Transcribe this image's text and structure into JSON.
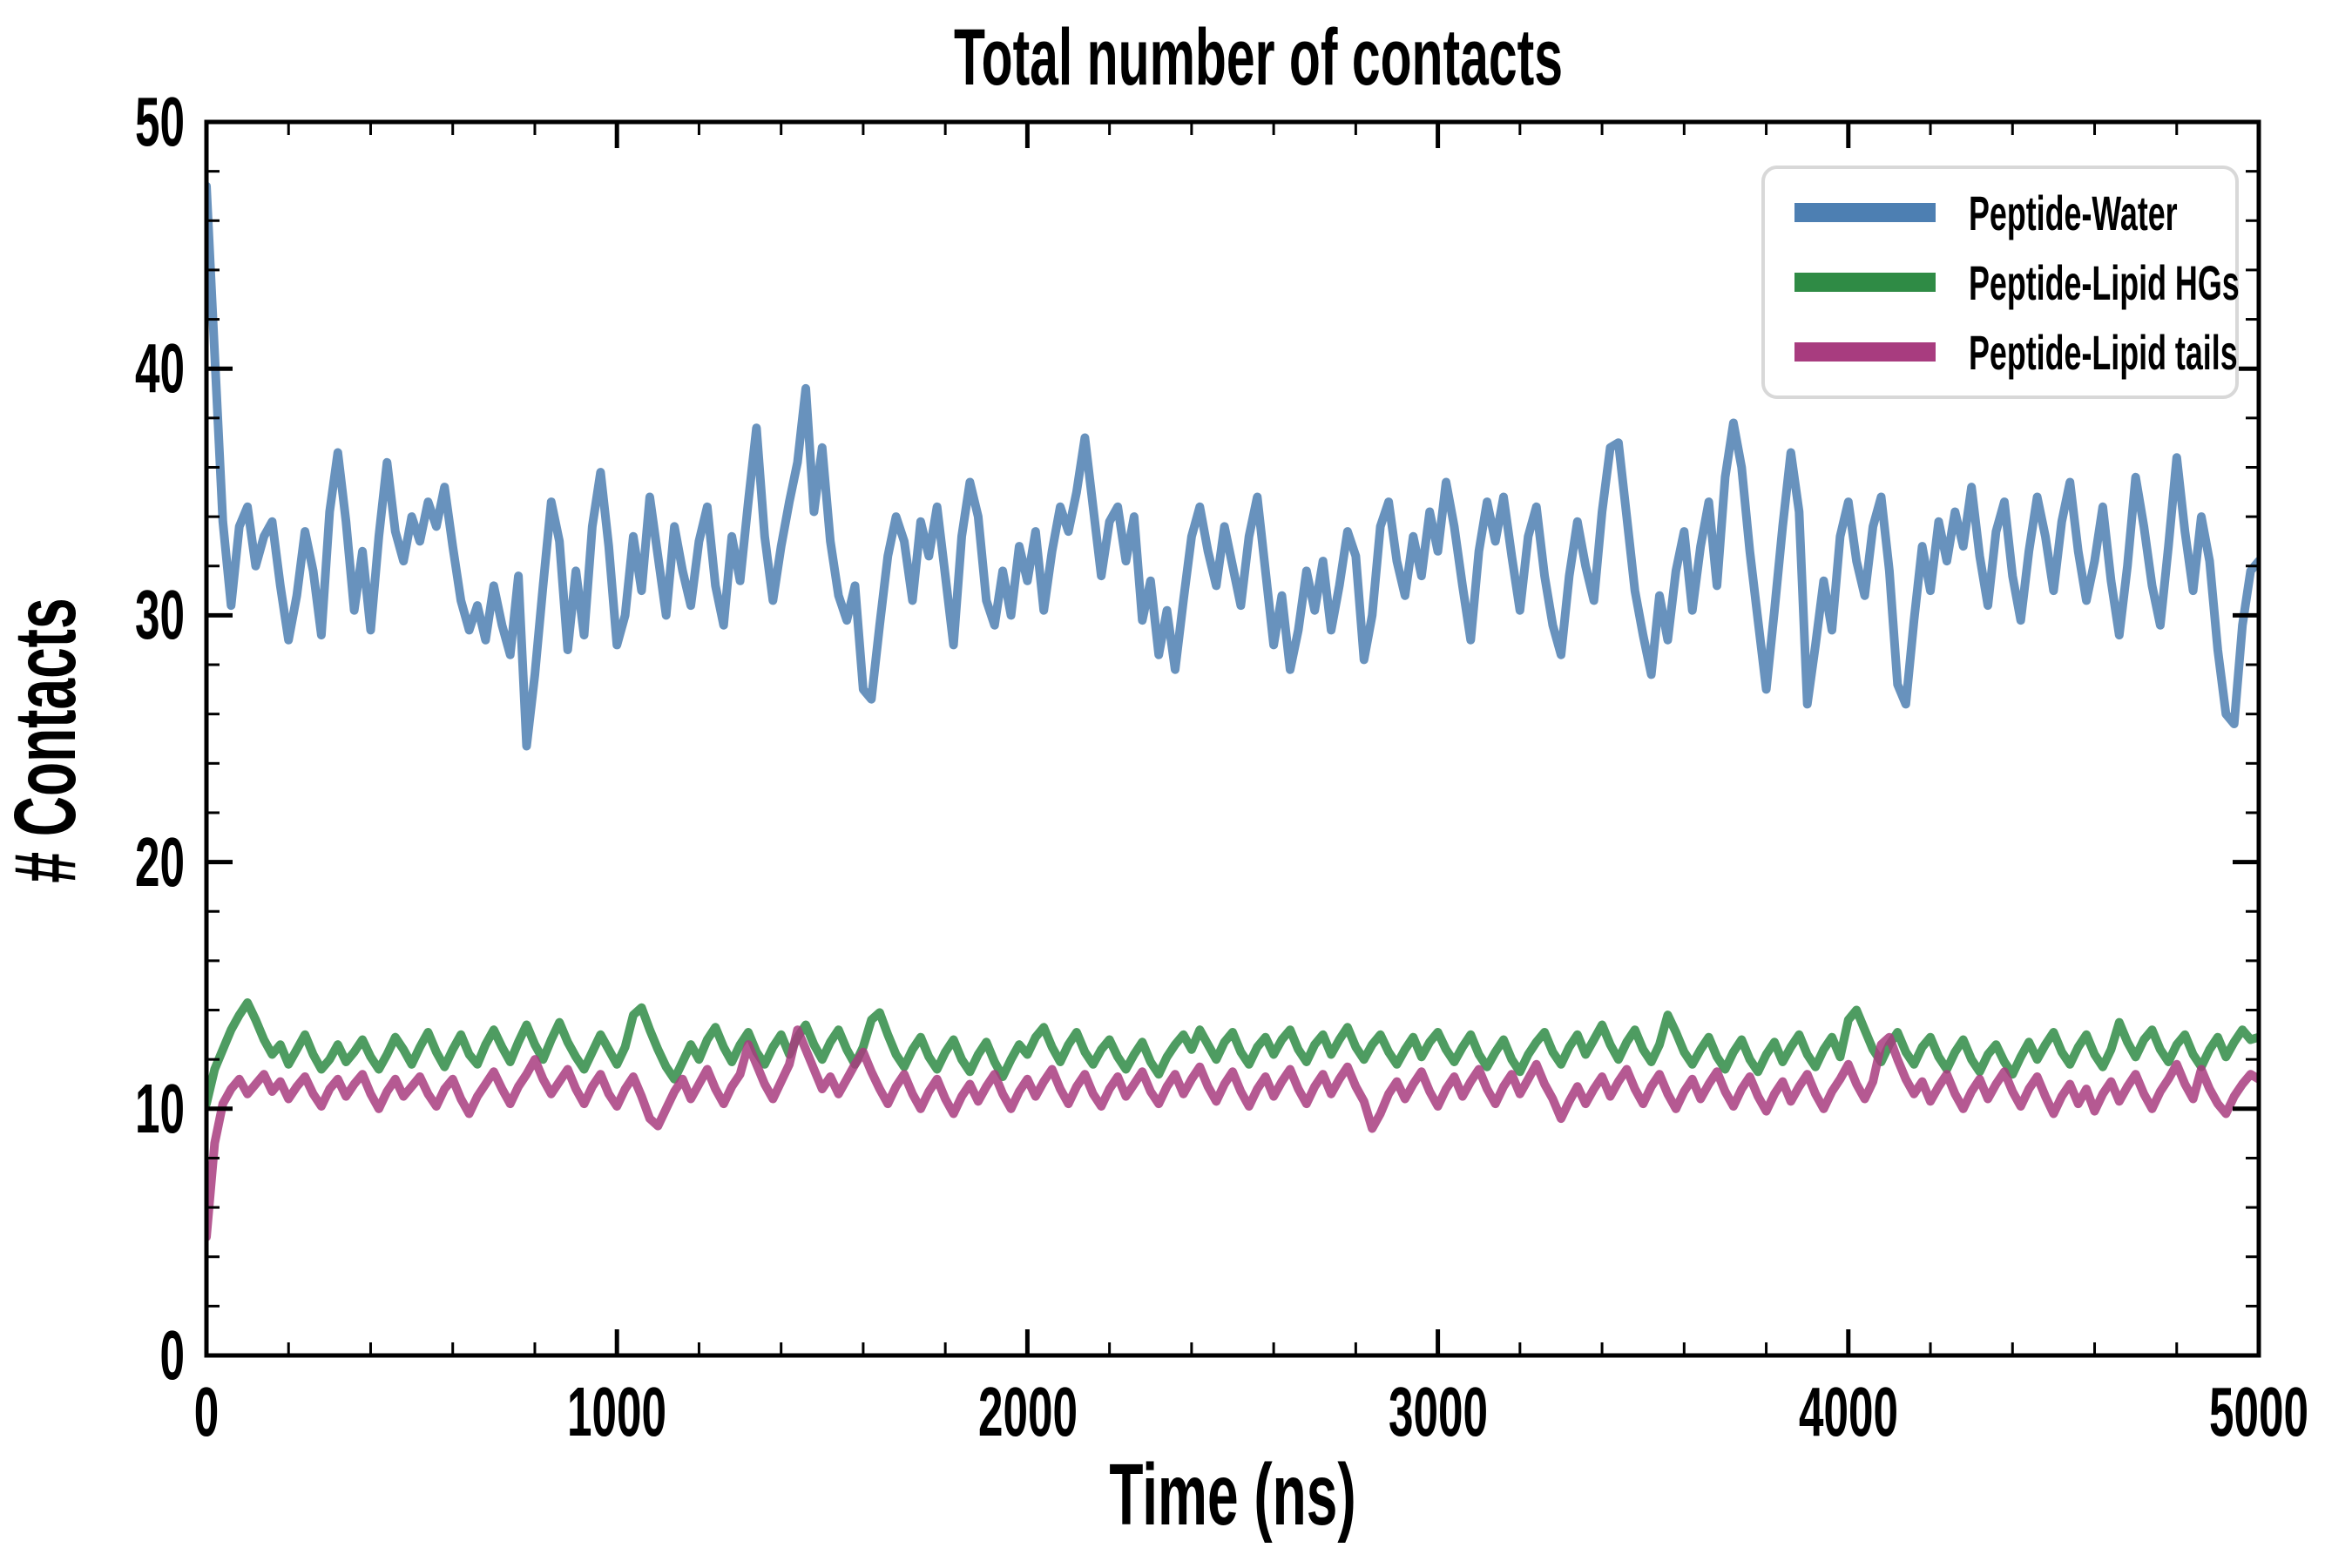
{
  "chart_data": {
    "type": "line",
    "title": "Total number of contacts",
    "xlabel": "Time (ns)",
    "ylabel": "# Contacts",
    "xlim": [
      0,
      5000
    ],
    "ylim": [
      0,
      50
    ],
    "grid": false,
    "legend_position": "upper right",
    "x_ticks": [
      0,
      1000,
      2000,
      3000,
      4000,
      5000
    ],
    "x_tick_labels": [
      "0",
      "1000",
      "2000",
      "3000",
      "4000",
      "5000"
    ],
    "x_minor_step": 200,
    "y_ticks": [
      0,
      10,
      20,
      30,
      40,
      50
    ],
    "y_tick_labels": [
      "0",
      "10",
      "20",
      "30",
      "40",
      "50"
    ],
    "y_minor_step": 2,
    "t_step": 20,
    "line_width": 10,
    "line_opacity": 0.85,
    "series": [
      {
        "name": "Peptide-Water",
        "color": "#4d7fb2",
        "values": [
          47.4,
          40.6,
          33.8,
          30.4,
          33.6,
          34.4,
          32.0,
          33.2,
          33.8,
          31.2,
          29.0,
          30.8,
          33.4,
          31.8,
          29.2,
          34.2,
          36.6,
          33.8,
          30.2,
          32.6,
          29.4,
          33.2,
          36.2,
          33.4,
          32.2,
          34.0,
          33.0,
          34.6,
          33.6,
          35.2,
          32.8,
          30.6,
          29.4,
          30.4,
          29.0,
          31.2,
          29.6,
          28.4,
          31.6,
          24.7,
          27.6,
          31.2,
          34.6,
          33.0,
          28.6,
          31.8,
          29.2,
          33.6,
          35.8,
          32.8,
          28.8,
          30.0,
          33.2,
          31.0,
          34.8,
          32.4,
          30.0,
          33.6,
          31.8,
          30.4,
          33.0,
          34.4,
          31.2,
          29.6,
          33.2,
          31.4,
          34.6,
          37.6,
          33.2,
          30.6,
          32.8,
          34.6,
          36.2,
          39.2,
          34.2,
          36.8,
          33.0,
          30.8,
          29.8,
          31.2,
          27.0,
          26.6,
          29.6,
          32.4,
          34.0,
          33.0,
          30.6,
          33.8,
          32.4,
          34.4,
          31.6,
          28.8,
          33.2,
          35.4,
          34.0,
          30.6,
          29.6,
          31.8,
          30.0,
          32.8,
          31.4,
          33.4,
          30.2,
          32.6,
          34.4,
          33.4,
          35.0,
          37.2,
          34.4,
          31.6,
          33.8,
          34.4,
          32.2,
          34.0,
          29.8,
          31.4,
          28.4,
          30.2,
          27.8,
          30.6,
          33.2,
          34.4,
          32.6,
          31.2,
          33.6,
          32.0,
          30.4,
          33.2,
          34.8,
          31.8,
          28.8,
          30.8,
          27.8,
          29.4,
          31.8,
          30.2,
          32.2,
          29.4,
          31.2,
          33.4,
          32.4,
          28.2,
          30.0,
          33.6,
          34.6,
          32.2,
          30.8,
          33.2,
          31.6,
          34.2,
          32.6,
          35.4,
          33.6,
          31.2,
          29.0,
          32.6,
          34.6,
          33.0,
          34.8,
          32.4,
          30.2,
          33.2,
          34.4,
          31.6,
          29.6,
          28.4,
          31.6,
          33.8,
          32.0,
          30.6,
          34.2,
          36.8,
          37.0,
          34.0,
          31.0,
          29.2,
          27.6,
          30.8,
          29.0,
          31.8,
          33.4,
          30.2,
          32.8,
          34.6,
          31.2,
          35.6,
          37.8,
          36.0,
          32.6,
          29.8,
          27.0,
          30.2,
          33.6,
          36.6,
          34.2,
          26.4,
          28.8,
          31.4,
          29.4,
          33.2,
          34.6,
          32.2,
          30.8,
          33.6,
          34.8,
          31.8,
          27.2,
          26.4,
          29.8,
          32.8,
          31.0,
          33.8,
          32.2,
          34.2,
          32.8,
          35.2,
          32.4,
          30.4,
          33.4,
          34.6,
          31.6,
          29.8,
          32.6,
          34.8,
          33.2,
          31.0,
          33.8,
          35.4,
          32.6,
          30.6,
          32.2,
          34.4,
          31.4,
          29.2,
          32.0,
          35.6,
          33.6,
          31.2,
          29.6,
          32.8,
          36.4,
          33.4,
          31.0,
          34.0,
          32.2,
          28.6,
          26.0,
          25.6,
          29.6,
          31.8,
          32.2
        ]
      },
      {
        "name": "Peptide-Lipid HGs",
        "color": "#2f8b45",
        "values": [
          10.2,
          11.6,
          12.4,
          13.2,
          13.8,
          14.3,
          13.6,
          12.8,
          12.2,
          12.6,
          11.8,
          12.4,
          13.0,
          12.2,
          11.6,
          12.0,
          12.6,
          11.9,
          12.3,
          12.8,
          12.1,
          11.6,
          12.2,
          12.9,
          12.4,
          11.8,
          12.5,
          13.1,
          12.3,
          11.7,
          12.4,
          13.0,
          12.2,
          11.8,
          12.6,
          13.2,
          12.5,
          11.9,
          12.7,
          13.4,
          12.6,
          12.0,
          12.8,
          13.5,
          12.7,
          12.1,
          11.6,
          12.3,
          13.0,
          12.4,
          11.8,
          12.5,
          13.8,
          14.1,
          13.2,
          12.4,
          11.7,
          11.2,
          11.9,
          12.6,
          12.0,
          12.8,
          13.3,
          12.5,
          11.9,
          12.6,
          13.1,
          12.3,
          11.8,
          12.5,
          13.0,
          12.2,
          12.9,
          13.4,
          12.6,
          12.0,
          12.7,
          13.2,
          12.4,
          11.8,
          12.5,
          13.6,
          13.9,
          13.0,
          12.2,
          11.7,
          12.4,
          12.9,
          12.1,
          11.6,
          12.3,
          12.8,
          12.0,
          11.5,
          12.2,
          12.7,
          11.9,
          11.3,
          12.0,
          12.6,
          12.2,
          12.9,
          13.3,
          12.5,
          11.9,
          12.6,
          13.1,
          12.3,
          11.8,
          12.4,
          12.8,
          12.1,
          11.6,
          12.2,
          12.7,
          11.9,
          11.4,
          12.1,
          12.6,
          13.0,
          12.4,
          13.2,
          12.6,
          12.0,
          12.7,
          13.1,
          12.3,
          11.8,
          12.5,
          12.9,
          12.2,
          12.8,
          13.2,
          12.4,
          11.9,
          12.6,
          13.0,
          12.2,
          12.8,
          13.3,
          12.5,
          12.0,
          12.6,
          13.0,
          12.3,
          11.8,
          12.4,
          12.9,
          12.1,
          12.7,
          13.1,
          12.4,
          11.9,
          12.5,
          13.0,
          12.2,
          11.7,
          12.3,
          12.8,
          12.0,
          11.5,
          12.2,
          12.7,
          13.1,
          12.3,
          11.8,
          12.5,
          13.0,
          12.2,
          12.8,
          13.4,
          12.6,
          12.0,
          12.7,
          13.2,
          12.4,
          11.9,
          12.6,
          13.8,
          13.1,
          12.3,
          11.8,
          12.4,
          12.9,
          12.1,
          11.6,
          12.3,
          12.8,
          12.0,
          11.5,
          12.2,
          12.7,
          11.9,
          12.5,
          13.0,
          12.2,
          11.7,
          12.4,
          12.9,
          12.1,
          13.6,
          14.0,
          13.2,
          12.4,
          11.9,
          12.6,
          13.1,
          12.3,
          11.8,
          12.5,
          12.9,
          12.1,
          11.6,
          12.3,
          12.8,
          12.0,
          11.5,
          12.2,
          12.6,
          11.9,
          11.4,
          12.1,
          12.7,
          12.0,
          12.6,
          13.1,
          12.3,
          11.8,
          12.5,
          13.0,
          12.2,
          11.7,
          12.4,
          13.5,
          12.7,
          12.1,
          12.8,
          13.2,
          12.4,
          11.9,
          12.6,
          13.0,
          12.2,
          11.7,
          12.4,
          12.9,
          12.1,
          12.7,
          13.2,
          12.8,
          12.9
        ]
      },
      {
        "name": "Peptide-Lipid tails",
        "color": "#a83c7f",
        "values": [
          4.8,
          8.6,
          10.2,
          10.8,
          11.2,
          10.6,
          11.0,
          11.4,
          10.7,
          11.1,
          10.4,
          10.9,
          11.3,
          10.6,
          10.1,
          10.8,
          11.2,
          10.5,
          11.0,
          11.4,
          10.6,
          10.0,
          10.7,
          11.2,
          10.5,
          10.9,
          11.3,
          10.6,
          10.1,
          10.8,
          11.2,
          10.4,
          9.8,
          10.5,
          11.0,
          11.5,
          10.8,
          10.2,
          10.9,
          11.4,
          12.0,
          11.2,
          10.6,
          11.1,
          11.6,
          10.8,
          10.2,
          10.9,
          11.4,
          10.6,
          10.1,
          10.8,
          11.3,
          10.5,
          9.6,
          9.3,
          10.0,
          10.7,
          11.2,
          10.4,
          11.0,
          11.6,
          10.8,
          10.2,
          10.9,
          11.4,
          12.6,
          11.8,
          11.0,
          10.4,
          11.1,
          11.8,
          13.2,
          12.4,
          11.6,
          10.8,
          11.3,
          10.6,
          11.2,
          11.8,
          12.3,
          11.5,
          10.8,
          10.2,
          10.9,
          11.4,
          10.6,
          10.0,
          10.7,
          11.2,
          10.4,
          9.8,
          10.5,
          11.0,
          10.3,
          10.9,
          11.4,
          10.6,
          10.0,
          10.7,
          11.2,
          10.5,
          11.1,
          11.6,
          10.8,
          10.2,
          10.9,
          11.4,
          10.6,
          10.1,
          10.8,
          11.3,
          10.5,
          11.0,
          11.5,
          10.7,
          10.2,
          10.9,
          11.4,
          10.6,
          11.2,
          11.7,
          10.9,
          10.3,
          11.0,
          11.5,
          10.7,
          10.1,
          10.8,
          11.3,
          10.5,
          11.1,
          11.6,
          10.8,
          10.2,
          10.9,
          11.4,
          10.6,
          11.2,
          11.7,
          10.9,
          10.3,
          9.2,
          9.8,
          10.6,
          11.1,
          10.4,
          11.0,
          11.5,
          10.7,
          10.1,
          10.8,
          11.3,
          10.5,
          11.1,
          11.6,
          10.8,
          10.2,
          10.9,
          11.4,
          10.6,
          11.2,
          11.8,
          11.0,
          10.4,
          9.6,
          10.3,
          10.9,
          10.2,
          10.8,
          11.3,
          10.5,
          11.1,
          11.6,
          10.8,
          10.2,
          10.9,
          11.4,
          10.6,
          10.0,
          10.7,
          11.2,
          10.4,
          11.0,
          11.5,
          10.7,
          10.1,
          10.8,
          11.3,
          10.5,
          9.9,
          10.6,
          11.1,
          10.3,
          10.9,
          11.4,
          10.6,
          10.0,
          10.7,
          11.2,
          11.8,
          11.0,
          10.4,
          11.1,
          12.6,
          12.9,
          12.0,
          11.2,
          10.6,
          11.1,
          10.3,
          10.9,
          11.4,
          10.6,
          10.0,
          10.7,
          11.2,
          10.4,
          11.0,
          11.5,
          10.7,
          10.1,
          10.8,
          11.3,
          10.5,
          9.8,
          10.5,
          11.0,
          10.2,
          10.8,
          9.9,
          10.6,
          11.1,
          10.3,
          10.9,
          11.4,
          10.6,
          10.0,
          10.7,
          11.2,
          11.8,
          11.0,
          10.4,
          11.6,
          10.8,
          10.2,
          9.8,
          10.5,
          11.0,
          11.4,
          11.2
        ]
      }
    ]
  }
}
